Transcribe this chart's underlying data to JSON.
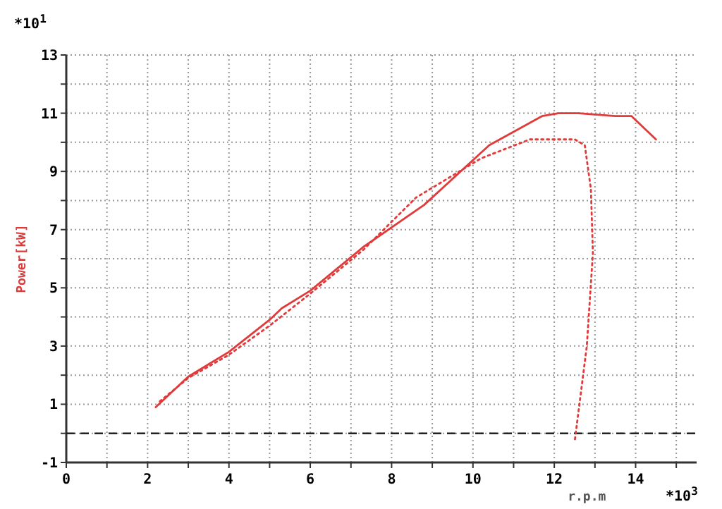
{
  "chart_data": {
    "type": "line",
    "xlabel": "r.p.m",
    "ylabel": "Power[kW]",
    "xlim": [
      0,
      15.5
    ],
    "ylim": [
      -1,
      13
    ],
    "xticks": [
      0,
      {
        "value": 1,
        "label": null
      },
      2,
      {
        "value": 3,
        "label": null
      },
      4,
      {
        "value": 5,
        "label": null
      },
      6,
      {
        "value": 7,
        "label": null
      },
      8,
      {
        "value": 9,
        "label": null
      },
      10,
      {
        "value": 11,
        "label": null
      },
      12,
      {
        "value": 13,
        "label": null
      },
      14,
      {
        "value": 15,
        "label": null
      }
    ],
    "yticks": [
      -1,
      {
        "value": 0,
        "label": null
      },
      1,
      {
        "value": 2,
        "label": null
      },
      3,
      {
        "value": 4,
        "label": null
      },
      5,
      {
        "value": 6,
        "label": null
      },
      7,
      {
        "value": 8,
        "label": null
      },
      9,
      {
        "value": 10,
        "label": null
      },
      11,
      {
        "value": 12,
        "label": null
      },
      13
    ],
    "grid": true,
    "ref_lines": [
      {
        "axis": "y",
        "value": 0,
        "label": null,
        "color": "#222222",
        "line_style": "dashed"
      }
    ],
    "annotations": [
      "*10$^{1}$",
      "*10$^{3}$"
    ],
    "series": [
      {
        "color": "#e03a3a",
        "line_style": "solid",
        "x": [
          2.2,
          3.0,
          4.0,
          5.0,
          5.3,
          6.0,
          7.0,
          7.3,
          8.8,
          10.4,
          11.7,
          12.1,
          12.6,
          13.5,
          13.9,
          14.5
        ],
        "values": [
          0.9,
          1.95,
          2.8,
          3.9,
          4.3,
          4.9,
          6.05,
          6.4,
          7.85,
          9.9,
          10.9,
          11.0,
          11.0,
          10.9,
          10.9,
          10.1
        ]
      },
      {
        "color": "#e03a3a",
        "line_style": "dotted",
        "x": [
          2.3,
          3.0,
          4.0,
          5.0,
          6.0,
          7.3,
          8.6,
          10.2,
          11.4,
          12.5,
          12.75,
          12.9,
          12.95,
          12.8,
          12.5
        ],
        "values": [
          1.1,
          1.9,
          2.7,
          3.7,
          4.8,
          6.3,
          8.1,
          9.45,
          10.1,
          10.1,
          9.9,
          8.4,
          6.2,
          3.0,
          -0.3
        ]
      }
    ]
  }
}
